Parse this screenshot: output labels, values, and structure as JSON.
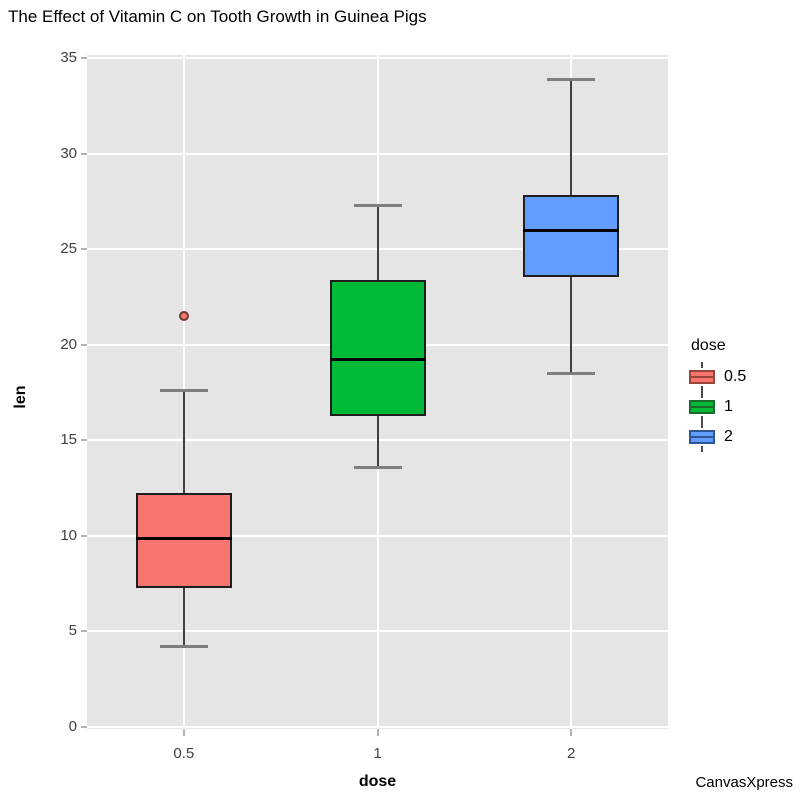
{
  "title": "The Effect of Vitamin C on Tooth Growth in Guinea Pigs",
  "watermark": "CanvasXpress",
  "chart_data": {
    "type": "boxplot",
    "title": "The Effect of Vitamin C on Tooth Growth in Guinea Pigs",
    "xlabel": "dose",
    "ylabel": "len",
    "categories": [
      "0.5",
      "1",
      "2"
    ],
    "y_ticks": [
      0,
      5,
      10,
      15,
      20,
      25,
      30,
      35
    ],
    "ylim": [
      0,
      35
    ],
    "grid": "white major gridlines on gray panel, horizontal every 5 units, vertical at each category",
    "panel_bg": "#E5E5E5",
    "legend": {
      "title": "dose",
      "position": "right",
      "entries": [
        {
          "label": "0.5",
          "color": "#F8766D",
          "border": "#99443C"
        },
        {
          "label": "1",
          "color": "#00BA38",
          "border": "#1A6B2A"
        },
        {
          "label": "2",
          "color": "#619CFF",
          "border": "#2F5597"
        }
      ]
    },
    "series": [
      {
        "name": "0.5",
        "color": "#F8766D",
        "border": "#99443C",
        "whisker_low": 4.2,
        "q1": 7.25,
        "median": 9.85,
        "q3": 12.25,
        "whisker_high": 17.6,
        "outliers": [
          21.5
        ]
      },
      {
        "name": "1",
        "color": "#00BA38",
        "border": "#1A6B2A",
        "whisker_low": 13.6,
        "q1": 16.25,
        "median": 19.25,
        "q3": 23.38,
        "whisker_high": 27.3,
        "outliers": []
      },
      {
        "name": "2",
        "color": "#619CFF",
        "border": "#2F5597",
        "whisker_low": 18.5,
        "q1": 23.53,
        "median": 25.95,
        "q3": 27.83,
        "whisker_high": 33.9,
        "outliers": []
      }
    ]
  },
  "colors": {
    "panel_bg": "#E5E5E5",
    "gridline": "#FFFFFF",
    "box_border": "#1F1F1F",
    "median": "#000000",
    "whisker_line": "#3F3F3F",
    "whisker_cap": "#7F7F7F",
    "tick_mark": "#B3B3B3",
    "tick_label": "#404040",
    "outlier_fill": "#F8766D",
    "outlier_stroke": "#6B3832"
  }
}
